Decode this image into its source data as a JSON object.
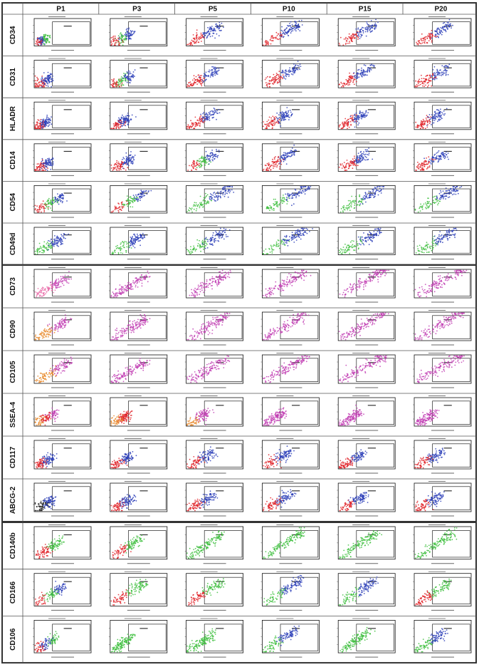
{
  "colors": {
    "red": "#e0252a",
    "green": "#3fbf3f",
    "blue": "#2d3fb8",
    "magenta": "#c23fb4",
    "orange": "#e8882a",
    "pink": "#e96aa8",
    "black": "#222222"
  },
  "columns": [
    "P1",
    "P3",
    "P5",
    "P10",
    "P15",
    "P20"
  ],
  "blocks": [
    {
      "rows": [
        {
          "marker": "CD34",
          "palettes": [
            "red,blue,green",
            "red,green,blue",
            "red,blue",
            "red,blue",
            "red,blue",
            "red,blue"
          ],
          "spread": [
            0.2,
            0.35,
            0.55,
            0.6,
            0.6,
            0.6
          ]
        },
        {
          "marker": "CD31",
          "palettes": [
            "red,blue",
            "red,green,blue",
            "red,blue",
            "red,blue",
            "red,blue",
            "red,blue"
          ],
          "spread": [
            0.25,
            0.35,
            0.5,
            0.6,
            0.55,
            0.55
          ]
        },
        {
          "marker": "HLADR",
          "palettes": [
            "red,blue",
            "red,blue",
            "red,blue",
            "red,blue",
            "red,blue",
            "red,blue"
          ],
          "spread": [
            0.2,
            0.3,
            0.5,
            0.45,
            0.45,
            0.45
          ]
        },
        {
          "marker": "CD14",
          "palettes": [
            "red,blue",
            "red,blue",
            "red,green,blue",
            "red,blue",
            "red,blue",
            "red,blue"
          ],
          "spread": [
            0.25,
            0.35,
            0.5,
            0.55,
            0.5,
            0.5
          ]
        },
        {
          "marker": "CD54",
          "palettes": [
            "red,green,blue",
            "red,green,blue",
            "green,blue",
            "green,blue",
            "green,blue",
            "green,blue"
          ],
          "spread": [
            0.5,
            0.6,
            0.75,
            0.8,
            0.75,
            0.75
          ]
        },
        {
          "marker": "CD49d",
          "palettes": [
            "green,blue",
            "green,blue",
            "green,blue",
            "green,blue",
            "green,blue",
            "green,blue"
          ],
          "spread": [
            0.5,
            0.55,
            0.65,
            0.75,
            0.7,
            0.7
          ]
        }
      ]
    },
    {
      "rows": [
        {
          "marker": "CD73",
          "palettes": [
            "pink,magenta",
            "magenta",
            "magenta",
            "magenta",
            "magenta",
            "magenta"
          ],
          "spread": [
            0.55,
            0.6,
            0.7,
            0.75,
            0.8,
            0.8
          ]
        },
        {
          "marker": "CD90",
          "palettes": [
            "orange,magenta",
            "magenta",
            "magenta",
            "magenta",
            "magenta",
            "magenta"
          ],
          "spread": [
            0.55,
            0.6,
            0.7,
            0.75,
            0.8,
            0.8
          ]
        },
        {
          "marker": "CD105",
          "palettes": [
            "orange,magenta",
            "magenta",
            "magenta",
            "magenta",
            "magenta",
            "magenta"
          ],
          "spread": [
            0.6,
            0.6,
            0.7,
            0.75,
            0.8,
            0.8
          ]
        },
        {
          "marker": "SSEA-4",
          "palettes": [
            "orange,red,magenta",
            "orange,red",
            "orange,magenta",
            "magenta",
            "magenta",
            "magenta"
          ],
          "spread": [
            0.35,
            0.3,
            0.35,
            0.35,
            0.35,
            0.35
          ]
        },
        {
          "marker": "CD117",
          "palettes": [
            "red,blue",
            "red,blue",
            "red,blue",
            "red,blue",
            "red,blue",
            "red,blue"
          ],
          "spread": [
            0.3,
            0.35,
            0.45,
            0.45,
            0.4,
            0.45
          ]
        },
        {
          "marker": "ABCG-2",
          "palettes": [
            "black,blue",
            "red,blue",
            "red,blue",
            "red,blue",
            "red,blue",
            "red,blue"
          ],
          "spread": [
            0.3,
            0.35,
            0.45,
            0.5,
            0.45,
            0.45
          ]
        }
      ]
    },
    {
      "rows": [
        {
          "marker": "CD140b",
          "palettes": [
            "red,green",
            "red,green",
            "green",
            "green",
            "green",
            "green"
          ],
          "spread": [
            0.45,
            0.5,
            0.6,
            0.7,
            0.65,
            0.65
          ]
        },
        {
          "marker": "CD166",
          "palettes": [
            "red,green,blue",
            "red,green",
            "red,green",
            "green,blue",
            "green,blue",
            "red,green"
          ],
          "spread": [
            0.5,
            0.55,
            0.6,
            0.65,
            0.6,
            0.55
          ]
        },
        {
          "marker": "CD106",
          "palettes": [
            "red,blue,green",
            "green",
            "green",
            "green,blue",
            "green",
            "green,blue"
          ],
          "spread": [
            0.35,
            0.35,
            0.45,
            0.55,
            0.5,
            0.5
          ]
        }
      ]
    }
  ]
}
